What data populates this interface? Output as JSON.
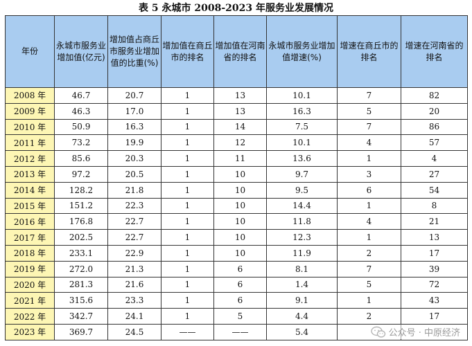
{
  "title": "表 5  永城市 2008-2023 年服务业发展情况",
  "headers": [
    "年份",
    "永城市服务业增加值(亿元)",
    "增加值占商丘市服务业增加值的比重(%)",
    "增加值在商丘市的排名",
    "增加值在河南省的排名",
    "永城市服务业增加值增速(%)",
    "增速在商丘市的排名",
    "增速在河南省的排名"
  ],
  "rows": [
    [
      "2008 年",
      "46.7",
      "20.7",
      "1",
      "13",
      "10.1",
      "7",
      "82"
    ],
    [
      "2009 年",
      "46.3",
      "17.0",
      "1",
      "13",
      "16.3",
      "5",
      "20"
    ],
    [
      "2010 年",
      "50.9",
      "16.3",
      "1",
      "14",
      "7.5",
      "7",
      "86"
    ],
    [
      "2011 年",
      "73.2",
      "19.9",
      "1",
      "12",
      "10.1",
      "4",
      "57"
    ],
    [
      "2012 年",
      "85.6",
      "20.3",
      "1",
      "11",
      "13.6",
      "1",
      "4"
    ],
    [
      "2013 年",
      "97.2",
      "20.5",
      "1",
      "10",
      "9.7",
      "3",
      "27"
    ],
    [
      "2014 年",
      "128.2",
      "21.8",
      "1",
      "10",
      "9.5",
      "6",
      "54"
    ],
    [
      "2015 年",
      "151.2",
      "22.3",
      "1",
      "10",
      "14.4",
      "1",
      "8"
    ],
    [
      "2016 年",
      "176.8",
      "22.7",
      "1",
      "10",
      "11.8",
      "4",
      "21"
    ],
    [
      "2017 年",
      "202.5",
      "22.7",
      "1",
      "10",
      "12.3",
      "1",
      "13"
    ],
    [
      "2018 年",
      "233.1",
      "22.9",
      "1",
      "10",
      "11.9",
      "2",
      "17"
    ],
    [
      "2019 年",
      "272.0",
      "21.3",
      "1",
      "6",
      "8.1",
      "7",
      "39"
    ],
    [
      "2020 年",
      "281.3",
      "21.6",
      "1",
      "6",
      "1.4",
      "5",
      "72"
    ],
    [
      "2021 年",
      "315.6",
      "23.3",
      "1",
      "6",
      "9.1",
      "1",
      "43"
    ],
    [
      "2022 年",
      "342.7",
      "24.1",
      "1",
      "5",
      "4.4",
      "2",
      "17"
    ],
    [
      "2023 年",
      "369.7",
      "24.5",
      "——",
      "——",
      "5.4",
      "",
      ""
    ]
  ],
  "watermark": {
    "label": "公众号 · 中原经济",
    "icon": "wechat-icon"
  },
  "colors": {
    "header_bg": "#a9ccf0",
    "year_bg": "#fdf6b4",
    "border": "#333333"
  }
}
